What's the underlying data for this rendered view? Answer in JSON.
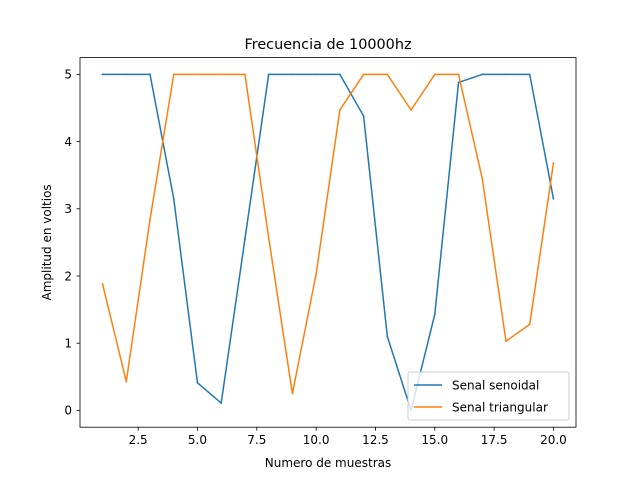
{
  "chart_data": {
    "type": "line",
    "title": "Frecuencia de 10000hz",
    "xlabel": "Numero de muestras",
    "ylabel": "Amplitud en voltios",
    "xlim": [
      0.05,
      20.95
    ],
    "ylim": [
      -0.25,
      5.25
    ],
    "xticks": [
      2.5,
      5.0,
      7.5,
      10.0,
      12.5,
      15.0,
      17.5,
      20.0
    ],
    "xtick_labels": [
      "2.5",
      "5.0",
      "7.5",
      "10.0",
      "12.5",
      "15.0",
      "17.5",
      "20.0"
    ],
    "yticks": [
      0,
      1,
      2,
      3,
      4,
      5
    ],
    "ytick_labels": [
      "0",
      "1",
      "2",
      "3",
      "4",
      "5"
    ],
    "grid": false,
    "legend_position": "lower-right",
    "x": [
      1,
      2,
      3,
      4,
      5,
      6,
      7,
      8,
      9,
      10,
      11,
      12,
      13,
      14,
      15,
      16,
      17,
      18,
      19,
      20
    ],
    "series": [
      {
        "name": "Senal senoidal",
        "color": "#1f77b4",
        "values": [
          5.0,
          5.0,
          5.0,
          3.15,
          0.41,
          0.11,
          2.55,
          5.0,
          5.0,
          5.0,
          5.0,
          4.38,
          1.1,
          0.0,
          1.43,
          4.88,
          5.0,
          5.0,
          5.0,
          3.15
        ]
      },
      {
        "name": "Senal triangular",
        "color": "#ff7f0e",
        "values": [
          1.88,
          0.43,
          2.84,
          5.0,
          5.0,
          5.0,
          5.0,
          2.57,
          0.25,
          2.03,
          4.47,
          5.0,
          5.0,
          4.47,
          5.0,
          5.0,
          3.45,
          1.03,
          1.28,
          3.68
        ]
      }
    ]
  }
}
